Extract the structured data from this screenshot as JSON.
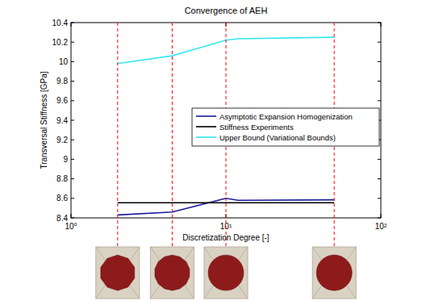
{
  "chart_data": {
    "type": "line",
    "title": "Convergence of AEH",
    "x_label": "Discretization Degree [-]",
    "y_label": "Transversal Stiffness [GPa]",
    "x": [
      2,
      4.5,
      10,
      12,
      50
    ],
    "series": [
      {
        "name": "Asymptotic Expansion Homogenization",
        "color": "#1c1c9c",
        "values": [
          8.43,
          8.46,
          8.6,
          8.58,
          8.585
        ]
      },
      {
        "name": "Stiffness Experiments",
        "color": "#000000",
        "values": [
          8.555,
          8.555,
          8.555,
          8.555,
          8.555
        ]
      },
      {
        "name": "Upper Bound (Variational Bounds)",
        "color": "#33e8f0",
        "values": [
          9.98,
          10.06,
          10.22,
          10.235,
          10.25
        ]
      }
    ],
    "xlim": [
      1,
      100
    ],
    "xticks": [
      {
        "value": 1,
        "label": "10⁰"
      },
      {
        "value": 10,
        "label": "10¹"
      },
      {
        "value": 100,
        "label": "10²"
      }
    ],
    "ylim": [
      8.4,
      10.4
    ],
    "yticks": [
      8.4,
      8.6,
      8.8,
      9,
      9.2,
      9.4,
      9.6,
      9.8,
      10,
      10.2,
      10.4
    ],
    "log": "x",
    "legend": "right",
    "vlines": [
      2,
      4.5,
      10,
      50
    ]
  }
}
